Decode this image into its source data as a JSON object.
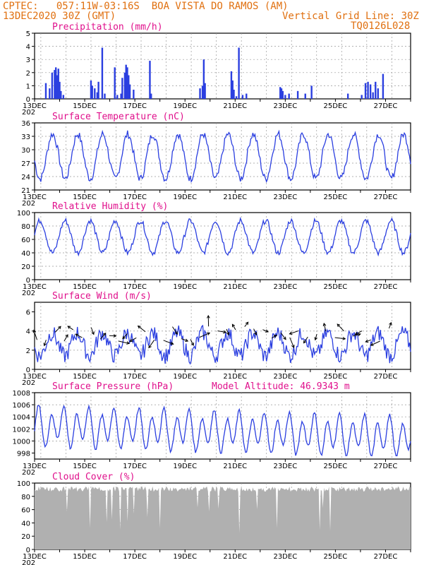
{
  "header": {
    "line1_left": "CPTEC:   057:11W-03:16S  BOA VISTA DO RAMOS (AM)",
    "line2_left": "13DEC2020 30Z (GMT)",
    "line2_right": "Vertical Grid Line: 30Z",
    "line3_right": "TQ0126L028"
  },
  "colors": {
    "header": "#e07010",
    "title": "#e0108c",
    "series": "#2b3fe0",
    "cloud": "#b0b0b0",
    "grid": "#999999"
  },
  "x_labels": [
    "13DEC",
    "15DEC",
    "17DEC",
    "19DEC",
    "21DEC",
    "23DEC",
    "25DEC",
    "27DEC"
  ],
  "x_year_fragment": "202",
  "chart_data": [
    {
      "type": "bar",
      "id": "precip",
      "title": "Precipitation  (mm/h)",
      "ylim": [
        0,
        5
      ],
      "yticks": [
        "0",
        "1",
        "2",
        "3",
        "4",
        "5"
      ],
      "x_unit": "days since 13DEC 00Z",
      "points": [
        [
          0.45,
          1.2
        ],
        [
          0.6,
          0.8
        ],
        [
          0.7,
          2.0
        ],
        [
          0.8,
          2.2
        ],
        [
          0.85,
          2.4
        ],
        [
          0.9,
          1.8
        ],
        [
          0.95,
          2.3
        ],
        [
          1.0,
          1.3
        ],
        [
          1.05,
          0.6
        ],
        [
          1.15,
          0.3
        ],
        [
          2.25,
          1.4
        ],
        [
          2.3,
          1.0
        ],
        [
          2.4,
          0.8
        ],
        [
          2.5,
          0.5
        ],
        [
          2.55,
          1.3
        ],
        [
          2.7,
          3.9
        ],
        [
          2.8,
          0.4
        ],
        [
          3.2,
          2.4
        ],
        [
          3.3,
          0.3
        ],
        [
          3.45,
          0.4
        ],
        [
          3.5,
          1.6
        ],
        [
          3.6,
          2.0
        ],
        [
          3.65,
          2.6
        ],
        [
          3.7,
          2.4
        ],
        [
          3.75,
          1.8
        ],
        [
          3.8,
          1.1
        ],
        [
          3.95,
          0.7
        ],
        [
          4.6,
          2.9
        ],
        [
          4.65,
          0.4
        ],
        [
          6.6,
          0.8
        ],
        [
          6.7,
          1.0
        ],
        [
          6.75,
          3.0
        ],
        [
          6.8,
          1.2
        ],
        [
          7.85,
          2.1
        ],
        [
          7.9,
          1.4
        ],
        [
          7.95,
          0.7
        ],
        [
          8.05,
          0.2
        ],
        [
          8.15,
          3.9
        ],
        [
          8.3,
          0.3
        ],
        [
          8.45,
          0.4
        ],
        [
          9.8,
          0.9
        ],
        [
          9.85,
          0.8
        ],
        [
          9.9,
          0.6
        ],
        [
          10.0,
          0.3
        ],
        [
          10.15,
          0.4
        ],
        [
          10.5,
          0.6
        ],
        [
          10.8,
          0.4
        ],
        [
          11.05,
          1.0
        ],
        [
          12.5,
          0.4
        ],
        [
          13.05,
          0.3
        ],
        [
          13.2,
          1.2
        ],
        [
          13.3,
          1.3
        ],
        [
          13.4,
          1.1
        ],
        [
          13.5,
          0.5
        ],
        [
          13.6,
          1.3
        ],
        [
          13.7,
          0.8
        ],
        [
          13.9,
          1.9
        ]
      ]
    },
    {
      "type": "line",
      "id": "temperature",
      "title": "Surface Temperature (nC)",
      "ylim": [
        21,
        36
      ],
      "yticks": [
        "21",
        "24",
        "27",
        "30",
        "33",
        "36"
      ],
      "mean": 28.5,
      "amplitude": 5,
      "values": "diurnal cycle, minima ~22-25, maxima ~31-35"
    },
    {
      "type": "line",
      "id": "humidity",
      "title": "Relative Humidity (%)",
      "ylim": [
        0,
        100
      ],
      "yticks": [
        "0",
        "20",
        "40",
        "60",
        "80",
        "100"
      ],
      "mean": 64,
      "amplitude": 24
    },
    {
      "type": "line",
      "id": "wind",
      "title": "Surface Wind (m/s)",
      "ylim": [
        0,
        7
      ],
      "yticks": [
        "0",
        "2",
        "4",
        "6"
      ],
      "mean": 2.6,
      "amplitude": 1.2,
      "arrows": "wind direction vectors drawn at y≈4"
    },
    {
      "type": "line",
      "id": "pressure",
      "title": "Surface Pressure (hPa)",
      "subtitle": "Model Altitude: 46.9343 m",
      "ylim": [
        997,
        1008
      ],
      "yticks": [
        "998",
        "1000",
        "1002",
        "1004",
        "1006",
        "1008"
      ],
      "mean": 1002.5,
      "amplitude": 3
    },
    {
      "type": "area",
      "id": "cloud",
      "title": "Cloud Cover (%)",
      "ylim": [
        0,
        100
      ],
      "yticks": [
        "0",
        "20",
        "40",
        "60",
        "80",
        "100"
      ],
      "typical": 95
    }
  ]
}
